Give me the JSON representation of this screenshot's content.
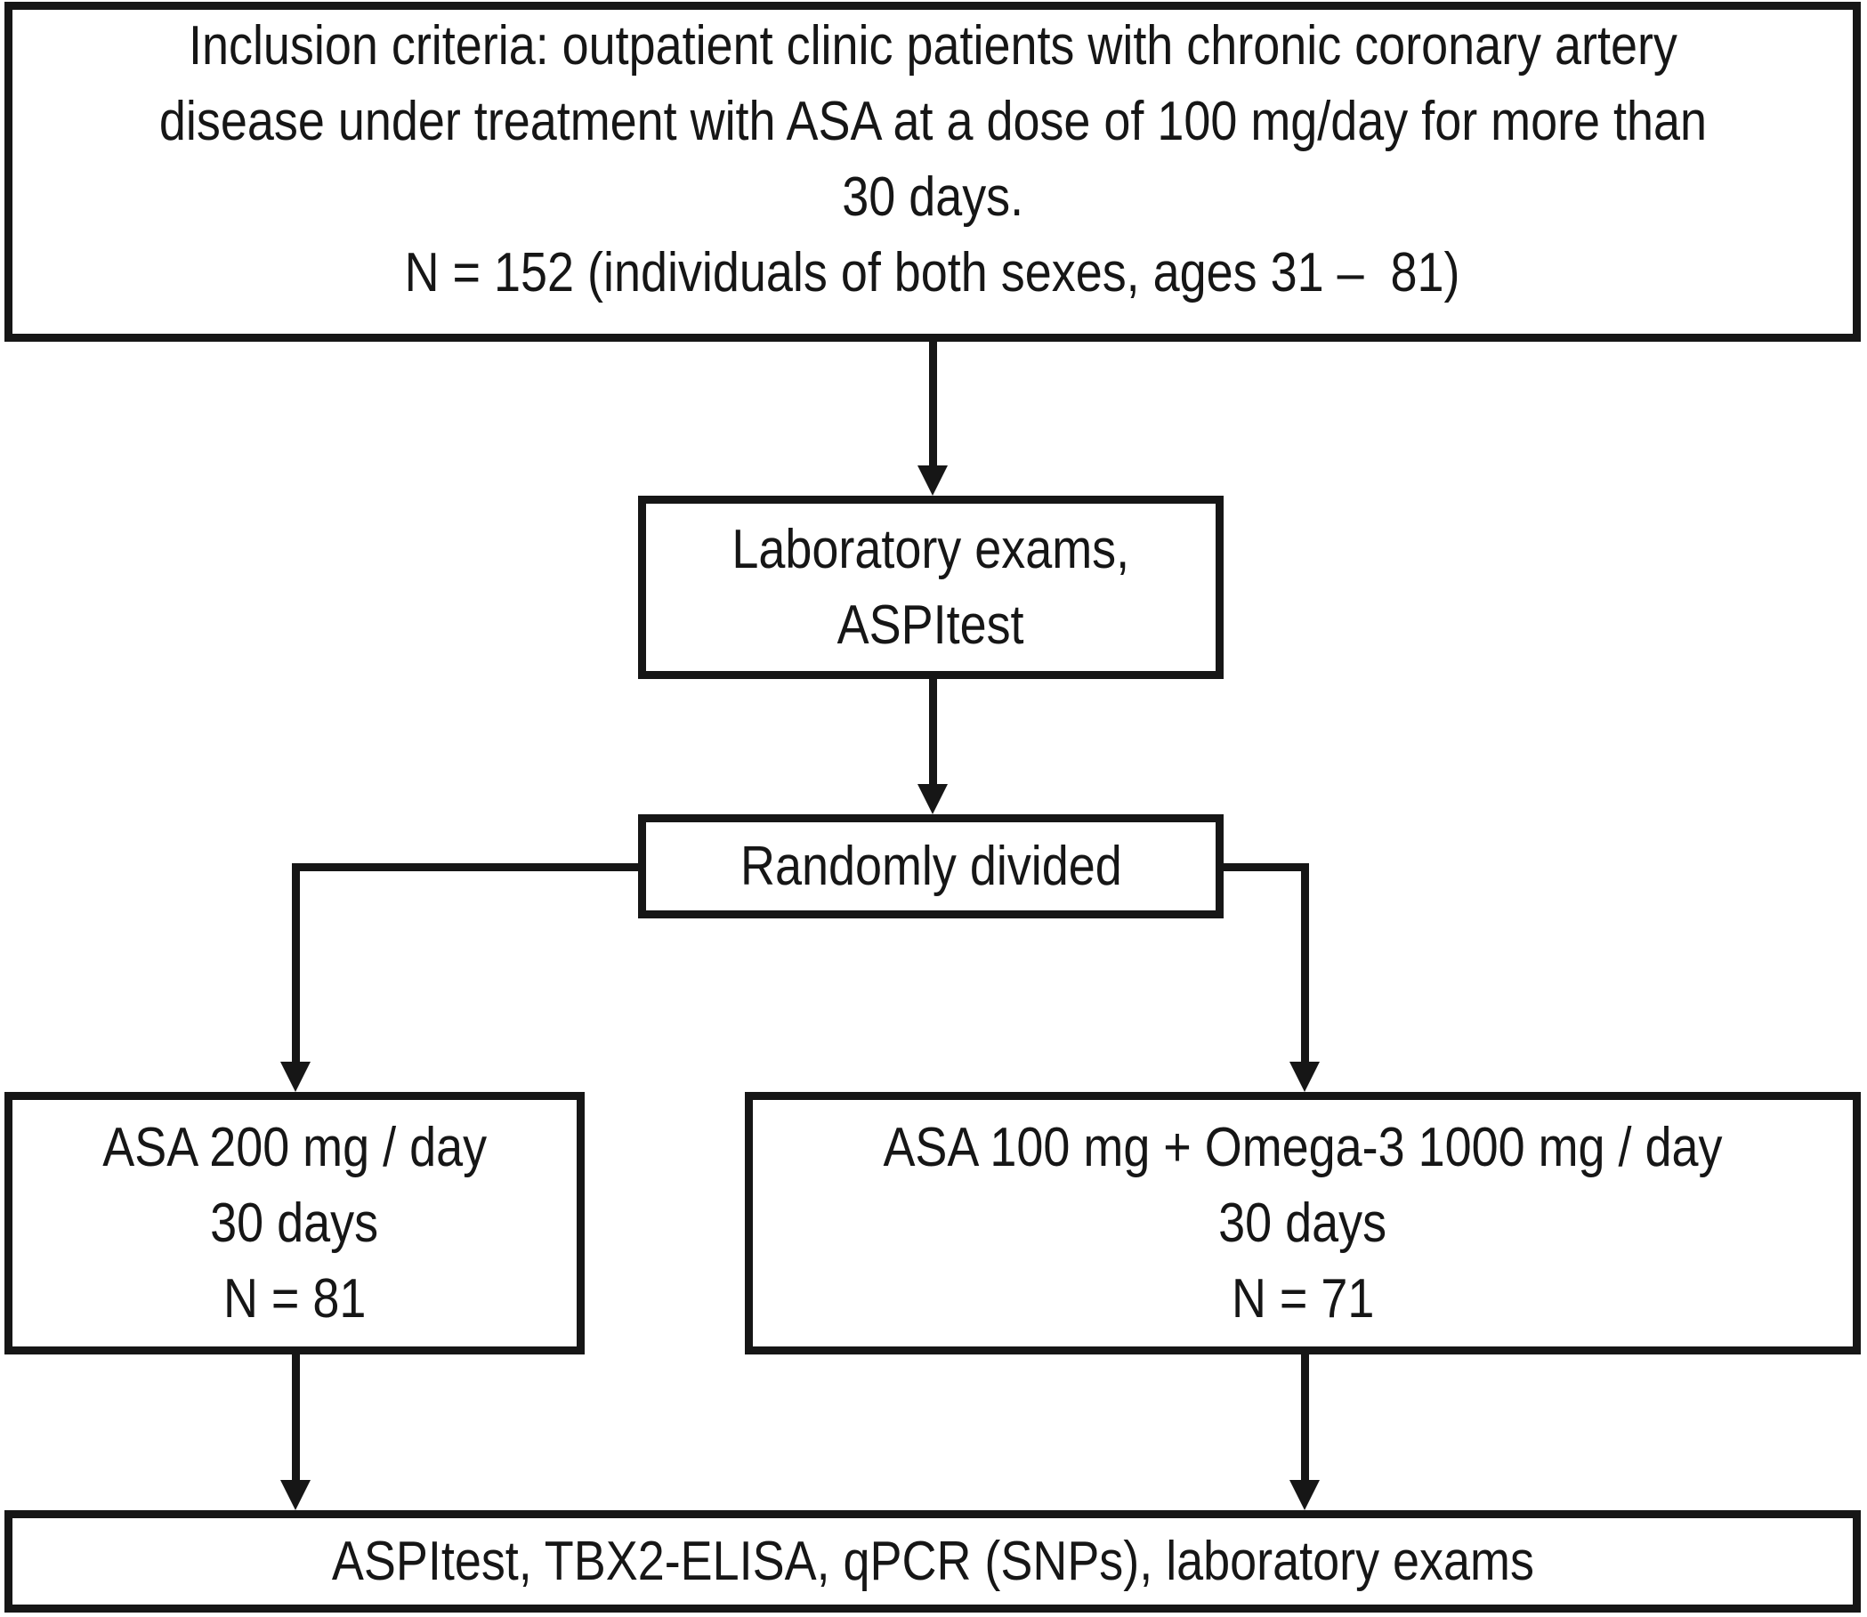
{
  "colors": {
    "ink": "#161616",
    "background": "#ffffff"
  },
  "boxes": {
    "inclusion": {
      "lines": [
        "Inclusion criteria: outpatient clinic patients with chronic coronary artery",
        "disease under treatment with ASA at a dose of 100 mg/day for more than",
        "30 days.",
        "N = 152 (individuals of both sexes, ages 31 –  81)"
      ]
    },
    "laboratory": {
      "lines": [
        "Laboratory exams,",
        "ASPItest"
      ]
    },
    "randomized": {
      "label": "Randomly divided"
    },
    "arm_asa": {
      "lines": [
        "ASA 200 mg / day",
        "30 days",
        "N = 81"
      ]
    },
    "arm_asa_omega3": {
      "lines": [
        "ASA 100 mg + Omega-3 1000 mg / day",
        "30 days",
        "N = 71"
      ]
    },
    "final": {
      "label": "ASPItest, TBX2-ELISA, qPCR (SNPs), laboratory exams"
    }
  }
}
